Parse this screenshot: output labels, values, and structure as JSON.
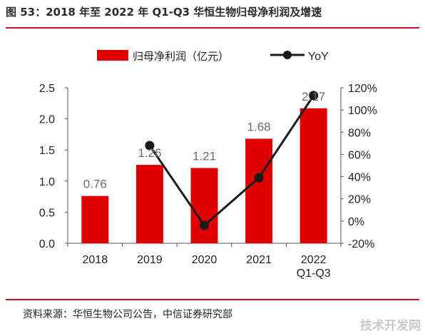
{
  "title": "图 53：2018 年至 2022 年 Q1-Q3 华恒生物归母净利润及增速",
  "source": "资料来源：华恒生物公司公告，中信证券研究部",
  "watermark": "技术开发网",
  "colors": {
    "bar": "#e00000",
    "line": "#1a1a1a",
    "rule": "#c8102e",
    "label": "#6b6b6b"
  },
  "chart_data": {
    "type": "bar",
    "categories": [
      [
        "2018"
      ],
      [
        "2019"
      ],
      [
        "2020"
      ],
      [
        "2021"
      ],
      [
        "2022",
        "Q1-Q3"
      ]
    ],
    "series": [
      {
        "name": "归母净利润（亿元）",
        "type": "bar",
        "axis": "left",
        "values": [
          0.76,
          1.26,
          1.21,
          1.68,
          2.17
        ],
        "labels": [
          "0.76",
          "1.26",
          "1.21",
          "1.68",
          "2.17"
        ]
      },
      {
        "name": "YoY",
        "type": "line",
        "axis": "right",
        "values": [
          null,
          68,
          -4,
          39,
          113
        ]
      }
    ],
    "y_left": {
      "min": 0,
      "max": 2.5,
      "ticks": [
        "0.0",
        "0.5",
        "1.0",
        "1.5",
        "2.0",
        "2.5"
      ]
    },
    "y_right": {
      "min": -20,
      "max": 120,
      "ticks": [
        "-20%",
        "0%",
        "20%",
        "40%",
        "60%",
        "80%",
        "100%",
        "120%"
      ]
    },
    "legend_position": "top-center",
    "grid": false
  }
}
